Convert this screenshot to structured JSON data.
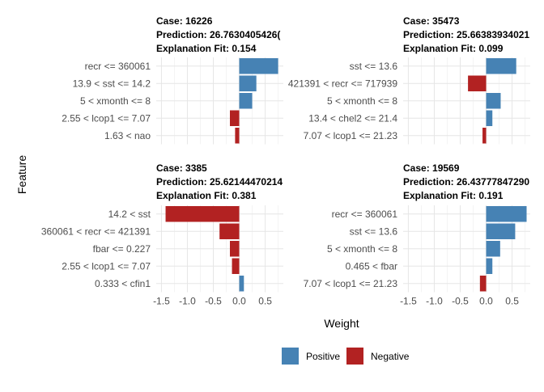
{
  "chart_data": {
    "type": "bar",
    "orientation": "horizontal",
    "xlabel": "Weight",
    "ylabel": "Feature",
    "xlim": [
      -1.6,
      0.85
    ],
    "x_ticks": [
      -1.5,
      -1.0,
      -0.5,
      0.0,
      0.5
    ],
    "x_tick_labels": [
      "-1.5",
      "-1.0",
      "-0.5",
      "0.0",
      "0.5"
    ],
    "grid": true,
    "legend": {
      "placement": "bottom",
      "items": [
        {
          "label": "Positive",
          "color": "#4682B4"
        },
        {
          "label": "Negative",
          "color": "#B22222"
        }
      ]
    },
    "panels": [
      {
        "case": "Case: 16226",
        "prediction": "Prediction: 26.7630405426(",
        "fit": "Explanation Fit: 0.154",
        "features": [
          "recr <= 360061",
          "13.9 < sst <= 14.2",
          "5 < xmonth <= 8",
          "2.55 < lcop1 <= 7.07",
          "1.63 < nao"
        ],
        "values": [
          0.75,
          0.33,
          0.25,
          -0.18,
          -0.08
        ]
      },
      {
        "case": "Case: 35473",
        "prediction": "Prediction: 25.66383934021",
        "fit": "Explanation Fit: 0.099",
        "features": [
          "sst <= 13.6",
          "421391 < recr <= 717939",
          "5 < xmonth <= 8",
          "13.4 < chel2 <= 21.4",
          "7.07 < lcop1 <= 21.23"
        ],
        "values": [
          0.58,
          -0.35,
          0.28,
          0.12,
          -0.07
        ]
      },
      {
        "case": "Case: 3385",
        "prediction": "Prediction: 25.62144470214",
        "fit": "Explanation Fit: 0.381",
        "features": [
          "14.2 < sst",
          "360061 < recr <= 421391",
          "fbar <= 0.227",
          "2.55 < lcop1 <= 7.07",
          "0.333 < cfin1"
        ],
        "values": [
          -1.42,
          -0.38,
          -0.18,
          -0.14,
          0.09
        ]
      },
      {
        "case": "Case: 19569",
        "prediction": "Prediction: 26.43777847290",
        "fit": "Explanation Fit: 0.191",
        "features": [
          "recr <= 360061",
          "sst <= 13.6",
          "5 < xmonth <= 8",
          "0.465 < fbar",
          "7.07 < lcop1 <= 21.23"
        ],
        "values": [
          0.78,
          0.56,
          0.27,
          0.12,
          -0.12
        ]
      }
    ]
  }
}
